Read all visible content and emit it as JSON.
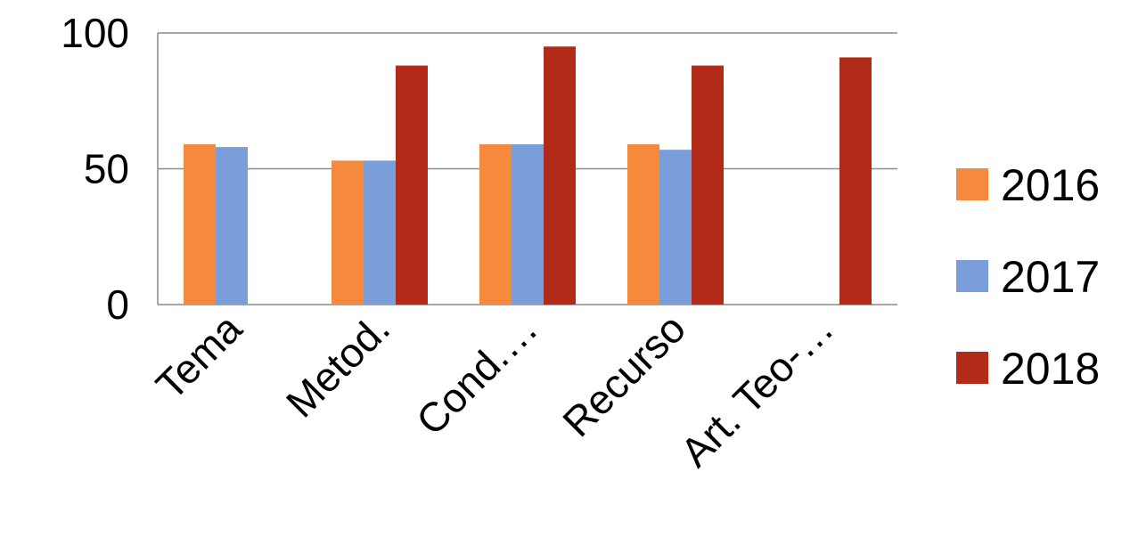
{
  "chart_data": {
    "type": "bar",
    "categories": [
      "Tema",
      "Metod.",
      "Cond.…",
      "Recurso",
      "Art. Teo-…"
    ],
    "series": [
      {
        "name": "2016",
        "values": [
          59,
          53,
          59,
          59,
          null
        ],
        "color": "#F58A3C"
      },
      {
        "name": "2017",
        "values": [
          58,
          53,
          59,
          57,
          null
        ],
        "color": "#7A9ED9"
      },
      {
        "name": "2018",
        "values": [
          null,
          88,
          95,
          88,
          91
        ],
        "color": "#B22B18"
      }
    ],
    "ylim": [
      0,
      100
    ],
    "yticks": [
      "0",
      "50",
      "100"
    ],
    "grid": true,
    "gridline_color": "#8c8c8c",
    "legend_position": "right",
    "title": "",
    "xlabel": "",
    "ylabel": ""
  }
}
